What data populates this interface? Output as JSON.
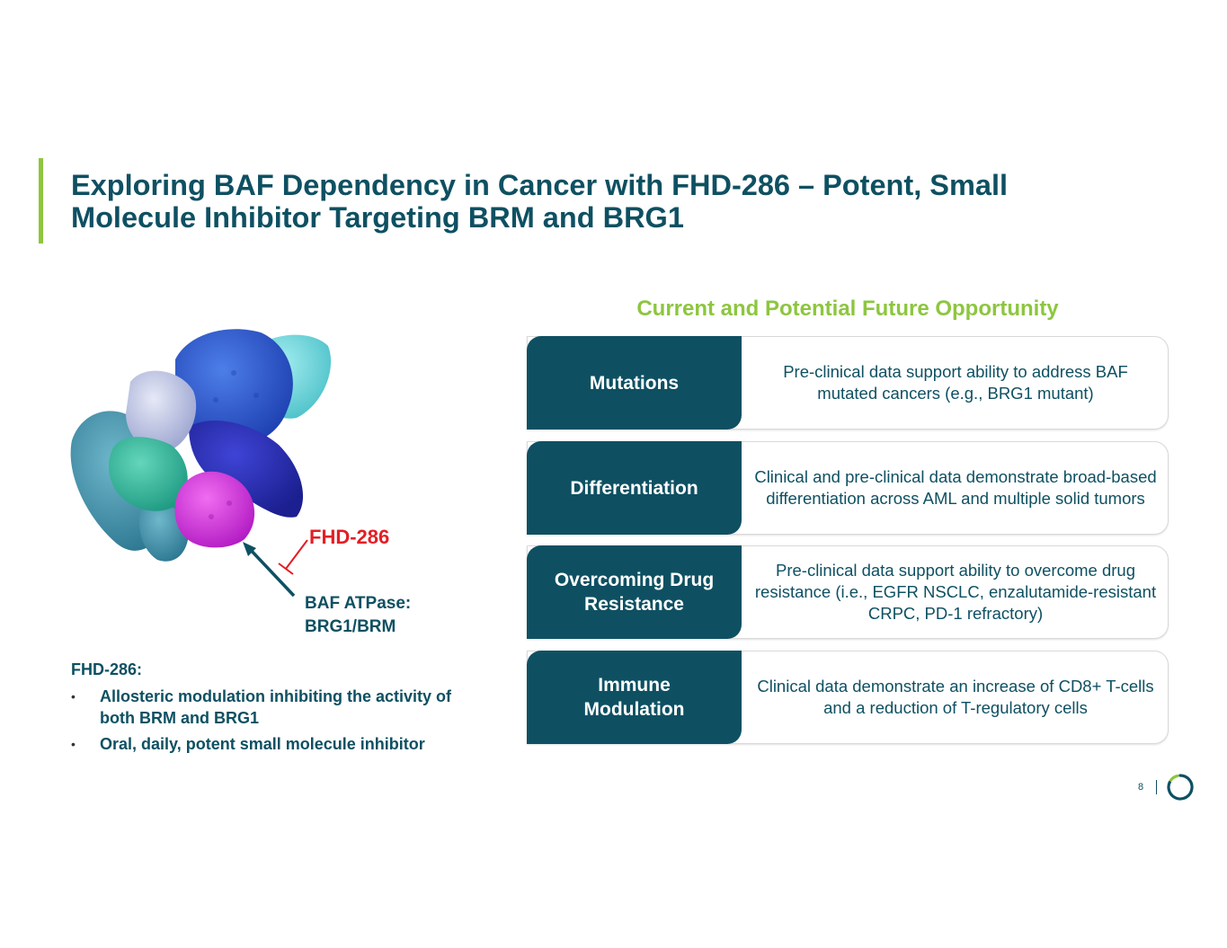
{
  "title": {
    "line1": "Exploring BAF Dependency in Cancer with FHD-286 – Potent, Small",
    "line2": "Molecule Inhibitor Targeting BRM and BRG1"
  },
  "colors": {
    "brand_teal": "#0e5062",
    "accent_green": "#8dc63f",
    "label_red": "#e31e24"
  },
  "figure": {
    "drug_label": "FHD-286",
    "target_label_line1": "BAF ATPase:",
    "target_label_line2": "BRG1/BRM"
  },
  "summary": {
    "heading": "FHD-286:",
    "bullets": [
      "Allosteric modulation inhibiting the activity of both BRM and BRG1",
      "Oral, daily, potent small molecule inhibitor"
    ]
  },
  "opportunity": {
    "heading": "Current and Potential Future Opportunity",
    "rows": [
      {
        "label": "Mutations",
        "description": "Pre-clinical data support ability to address BAF mutated cancers (e.g., BRG1 mutant)"
      },
      {
        "label": "Differentiation",
        "description": "Clinical and pre-clinical data demonstrate broad-based differentiation across AML and multiple solid tumors"
      },
      {
        "label": "Overcoming Drug Resistance",
        "description": "Pre-clinical data support ability to overcome drug resistance (i.e., EGFR NSCLC, enzalutamide-resistant CRPC, PD-1 refractory)"
      },
      {
        "label": "Immune Modulation",
        "description": "Clinical data demonstrate an increase of CD8+ T-cells and a reduction of T-regulatory cells"
      }
    ]
  },
  "footer": {
    "page_number": "8"
  }
}
